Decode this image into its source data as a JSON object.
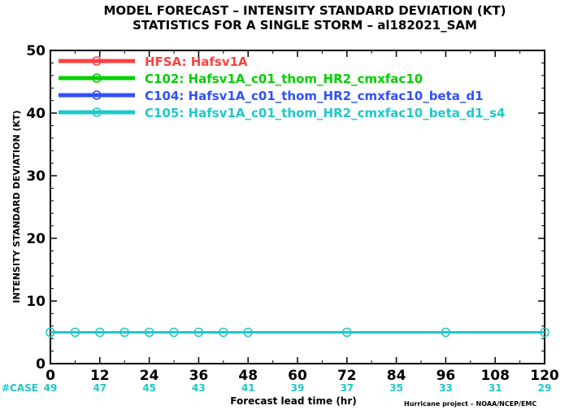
{
  "chart_data": {
    "type": "line",
    "title": "MODEL FORECAST – INTENSITY STANDARD DEVIATION (KT)",
    "subtitle": "STATISTICS FOR A SINGLE STORM – al182021_SAM",
    "xlabel": "Forecast lead time (hr)",
    "ylabel": "INTENSITY STANDARD DEVIATION (KT)",
    "xlim": [
      0,
      120
    ],
    "ylim": [
      0,
      50
    ],
    "xticks": [
      0,
      12,
      24,
      36,
      48,
      60,
      72,
      84,
      96,
      108,
      120
    ],
    "yticks": [
      0,
      10,
      20,
      30,
      40,
      50
    ],
    "grid": false,
    "legend_position": "top-left",
    "series": [
      {
        "name": "HFSA: Hafsv1A",
        "color": "#ff4040",
        "x": [],
        "y": []
      },
      {
        "name": "C102: Hafsv1A_c01_thom_HR2_cmxfac10",
        "color": "#00d000",
        "x": [],
        "y": []
      },
      {
        "name": "C104: Hafsv1A_c01_thom_HR2_cmxfac10_beta_d1",
        "color": "#3050ff",
        "x": [],
        "y": []
      },
      {
        "name": "C105: Hafsv1A_c01_thom_HR2_cmxfac10_beta_d1_s4",
        "color": "#1ec8c8",
        "x": [
          0,
          6,
          12,
          18,
          24,
          30,
          36,
          42,
          48,
          72,
          96,
          120
        ],
        "y": [
          5,
          5,
          5,
          5,
          5,
          5,
          5,
          5,
          5,
          5,
          5,
          5
        ]
      }
    ],
    "case_label": "#CASE",
    "case_counts": {
      "x": [
        0,
        12,
        24,
        36,
        48,
        60,
        72,
        84,
        96,
        108,
        120
      ],
      "values": [
        "49",
        "47",
        "45",
        "43",
        "41",
        "39",
        "37",
        "35",
        "33",
        "31",
        "29"
      ]
    },
    "credit": "Hurricane project – NOAA/NCEP/EMC"
  }
}
